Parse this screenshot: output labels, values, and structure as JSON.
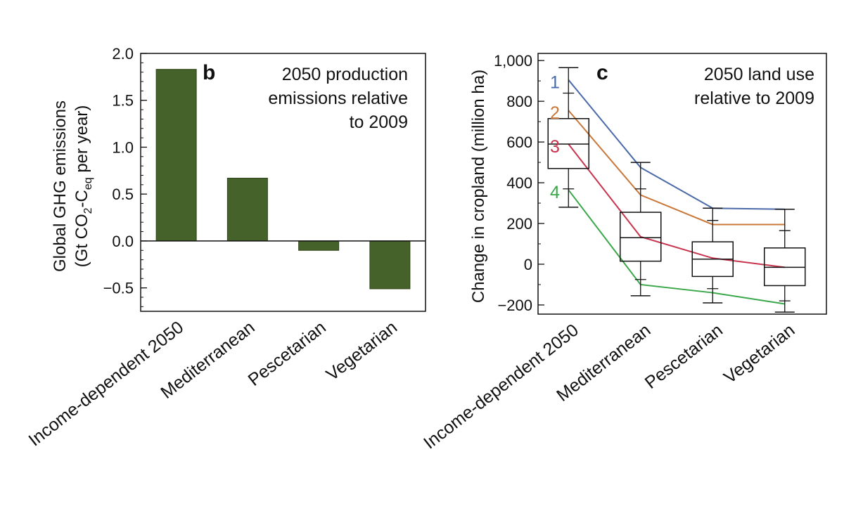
{
  "chart_data": [
    {
      "type": "bar",
      "panel": "b",
      "annotation": [
        "2050 production",
        "emissions relative",
        "to 2009"
      ],
      "ylabel_line1": "Global GHG emissions",
      "ylabel_line2_parts": [
        "(Gt CO",
        "2",
        "-C",
        "eq",
        " per year)"
      ],
      "categories": [
        "Income-dependent 2050",
        "Mediterranean",
        "Pescetarian",
        "Vegetarian"
      ],
      "values": [
        1.83,
        0.67,
        -0.1,
        -0.51
      ],
      "ylim": [
        -0.75,
        2.0
      ],
      "yticks": [
        2.0,
        1.5,
        1.0,
        0.5,
        0.0,
        -0.5
      ],
      "ytick_labels": [
        "2.0",
        "1.5",
        "1.0",
        "0.5",
        "0.0",
        "−0.5"
      ],
      "bar_color": "#45622a"
    },
    {
      "type": "box",
      "panel": "c",
      "annotation": [
        "2050 land use",
        "relative to 2009"
      ],
      "ylabel": "Change in cropland (million ha)",
      "categories": [
        "Income-dependent 2050",
        "Mediterranean",
        "Pescetarian",
        "Vegetarian"
      ],
      "ylim": [
        -245,
        1035
      ],
      "yticks": [
        1000,
        800,
        600,
        400,
        200,
        0,
        -200
      ],
      "ytick_labels": [
        "1,000",
        "800",
        "600",
        "400",
        "200",
        "0",
        "−200"
      ],
      "boxes": [
        {
          "min": 280,
          "q1": 470,
          "median": 590,
          "q3": 715,
          "max": 965,
          "ticks": [
            370,
            840
          ]
        },
        {
          "min": -155,
          "q1": 15,
          "median": 130,
          "q3": 255,
          "max": 500,
          "ticks": [
            -75,
            370
          ]
        },
        {
          "min": -190,
          "q1": -60,
          "median": 25,
          "q3": 110,
          "max": 275,
          "ticks": [
            -120,
            215
          ]
        },
        {
          "min": -235,
          "q1": -105,
          "median": -15,
          "q3": 80,
          "max": 270,
          "ticks": [
            -180,
            165
          ]
        }
      ],
      "series": [
        {
          "name": "1",
          "color": "#4a6aa8",
          "values": [
            905,
            475,
            275,
            270
          ]
        },
        {
          "name": "2",
          "color": "#c9783a",
          "values": [
            755,
            340,
            195,
            195
          ]
        },
        {
          "name": "3",
          "color": "#c8344e",
          "values": [
            590,
            135,
            30,
            -15
          ]
        },
        {
          "name": "4",
          "color": "#3aa84a",
          "values": [
            365,
            -100,
            -140,
            -195
          ]
        }
      ]
    }
  ]
}
